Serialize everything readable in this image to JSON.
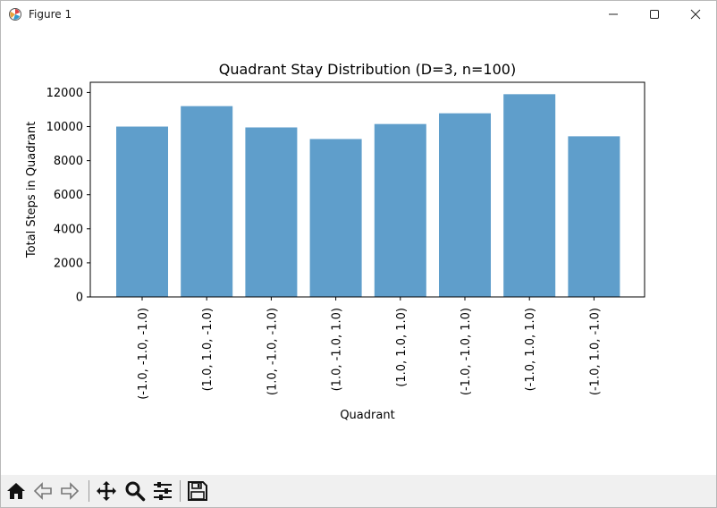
{
  "window": {
    "title": "Figure 1",
    "icons": [
      "app-icon",
      "minimize-icon",
      "maximize-icon",
      "close-icon"
    ]
  },
  "toolbar": {
    "buttons": [
      {
        "name": "home-icon",
        "label": "Home"
      },
      {
        "name": "back-icon",
        "label": "Back"
      },
      {
        "name": "forward-icon",
        "label": "Forward"
      },
      {
        "name": "pan-icon",
        "label": "Pan"
      },
      {
        "name": "zoom-icon",
        "label": "Zoom"
      },
      {
        "name": "configure-subplots-icon",
        "label": "Configure subplots"
      },
      {
        "name": "save-icon",
        "label": "Save"
      }
    ]
  },
  "chart_data": {
    "type": "bar",
    "title": "Quadrant Stay Distribution (D=3, n=100)",
    "xlabel": "Quadrant",
    "ylabel": "Total Steps in Quadrant",
    "categories": [
      "(-1.0, -1.0, -1.0)",
      "(1.0, 1.0, -1.0)",
      "(1.0, -1.0, -1.0)",
      "(1.0, -1.0, 1.0)",
      "(1.0, 1.0, 1.0)",
      "(-1.0, -1.0, 1.0)",
      "(-1.0, 1.0, 1.0)",
      "(-1.0, 1.0, -1.0)"
    ],
    "values": [
      10000,
      11200,
      9950,
      9270,
      10150,
      10780,
      11900,
      9430
    ],
    "yticks": [
      "0",
      "2000",
      "4000",
      "6000",
      "8000",
      "10000",
      "12000"
    ],
    "ylim": [
      0,
      12600
    ],
    "grid": false,
    "legend": "none",
    "bar_color": "#5f9ecb",
    "bar_alpha": 1
  }
}
